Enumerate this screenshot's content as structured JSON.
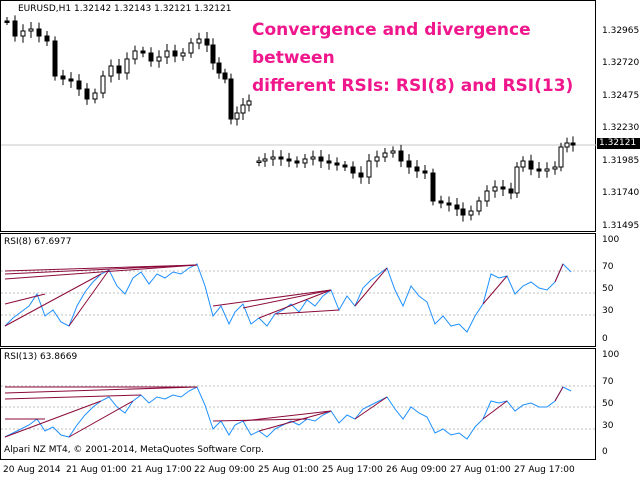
{
  "header": {
    "symbol_info": "EURUSD,H1  1.32142 1.32143 1.32121 1.32121"
  },
  "annotation": {
    "line1": "Convergence and divergence between",
    "line2": "different RSIs: RSI(8) and RSI(13)"
  },
  "price_pane": {
    "scale_labels": [
      "1.32965",
      "1.32720",
      "1.32475",
      "1.32230",
      "1.31985",
      "1.31740",
      "1.31495"
    ],
    "current_price": "1.32121"
  },
  "rsi8_pane": {
    "title": "RSI(8) 67.6977",
    "scale_labels": [
      "100",
      "70",
      "50",
      "30",
      "0"
    ]
  },
  "rsi13_pane": {
    "title": "RSI(13) 63.8669",
    "scale_labels": [
      "100",
      "70",
      "50",
      "30",
      "0"
    ]
  },
  "copyright": "Alpari NZ MT4, © 2001-2014, MetaQuotes Software Corp.",
  "time_axis": {
    "labels": [
      "20 Aug 2014",
      "21 Aug 01:00",
      "21 Aug 17:00",
      "22 Aug 09:00",
      "25 Aug 01:00",
      "25 Aug 17:00",
      "26 Aug 09:00",
      "27 Aug 01:00",
      "27 Aug 17:00"
    ]
  },
  "colors": {
    "annotation": "#f0168c",
    "rsi_line": "#1e90ff",
    "divergence": "#8b0a3a",
    "candle": "#000000"
  }
}
